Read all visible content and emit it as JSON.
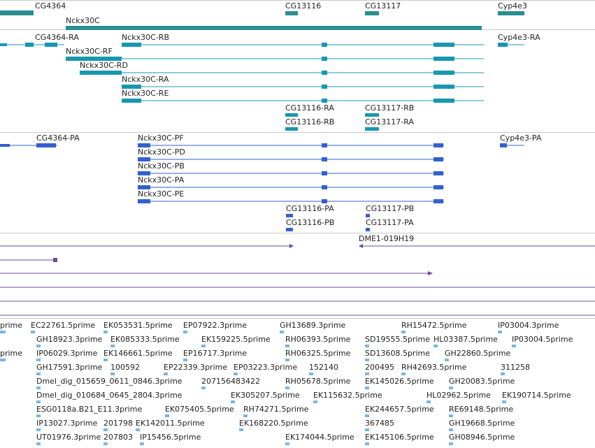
{
  "colors": {
    "gene": "#2a8f8f",
    "transcript": "#1797b0",
    "protein": "#3261cc",
    "clone": "#6a4b9a",
    "est": "#7ab6dc",
    "separator": "#c8c8c8"
  },
  "tracks": {
    "genes": [
      {
        "label": "CG4364"
      },
      {
        "label": "Nckx30C"
      },
      {
        "label": "CG13116"
      },
      {
        "label": "CG13117"
      },
      {
        "label": "Cyp4e3"
      }
    ],
    "transcripts": [
      {
        "label": "CG4364-RA"
      },
      {
        "label": "Nckx30C-RB"
      },
      {
        "label": "Cyp4e3-RA"
      },
      {
        "label": "Nckx30C-RF"
      },
      {
        "label": "Nckx30C-RD"
      },
      {
        "label": "Nckx30C-RA"
      },
      {
        "label": "Nckx30C-RE"
      },
      {
        "label": "CG13116-RA"
      },
      {
        "label": "CG13117-RB"
      },
      {
        "label": "CG13116-RB"
      },
      {
        "label": "CG13117-RA"
      }
    ],
    "proteins": [
      {
        "label": "CG4364-PA"
      },
      {
        "label": "Nckx30C-PF"
      },
      {
        "label": "Cyp4e3-PA"
      },
      {
        "label": "Nckx30C-PD"
      },
      {
        "label": "Nckx30C-PB"
      },
      {
        "label": "Nckx30C-PA"
      },
      {
        "label": "Nckx30C-PE"
      },
      {
        "label": "CG13116-PA"
      },
      {
        "label": "CG13117-PB"
      },
      {
        "label": "CG13116-PB"
      },
      {
        "label": "CG13117-PA"
      }
    ],
    "clones": [
      {
        "label": "DME1-019H19"
      }
    ],
    "ests": [
      {
        "label": "prime"
      },
      {
        "label": "EC22761.5prime"
      },
      {
        "label": "EK053531.5prime"
      },
      {
        "label": "EP07922.3prime"
      },
      {
        "label": "GH13689.3prime"
      },
      {
        "label": "RH15472.5prime"
      },
      {
        "label": "IP03004.3prime"
      },
      {
        "label": "GH18923.3prime"
      },
      {
        "label": "EK085333.5prime"
      },
      {
        "label": "EK159225.5prime"
      },
      {
        "label": "RH06393.5prime"
      },
      {
        "label": "SD19555.5prime"
      },
      {
        "label": "HL03387.5prime"
      },
      {
        "label": "IP03004.5prime"
      },
      {
        "label": "prime"
      },
      {
        "label": "IP06029.3prime"
      },
      {
        "label": "EK146661.5prime"
      },
      {
        "label": "EP16717.3prime"
      },
      {
        "label": "RH06325.5prime"
      },
      {
        "label": "SD13608.5prime"
      },
      {
        "label": "GH22860.5prime"
      },
      {
        "label": "GH17591.3prime"
      },
      {
        "label": "100592"
      },
      {
        "label": "EP22339.3prime"
      },
      {
        "label": "EP03223.3prime"
      },
      {
        "label": "152140"
      },
      {
        "label": "200495"
      },
      {
        "label": "RH42693.5prime"
      },
      {
        "label": "311258"
      },
      {
        "label": "Dmel_dig_015659_0611_0846.3prime"
      },
      {
        "label": "207156483422"
      },
      {
        "label": "RH05678.5prime"
      },
      {
        "label": "EK145026.5prime"
      },
      {
        "label": "GH20083.5prime"
      },
      {
        "label": "Dmel_dig_010684_0645_2804.3prime"
      },
      {
        "label": "EK305207.5prime"
      },
      {
        "label": "EK115632.5prime"
      },
      {
        "label": "HL02962.5prime"
      },
      {
        "label": "EK190714.5prime"
      },
      {
        "label": "ESG0118a.B21_E11.3prime"
      },
      {
        "label": "EK075405.5prime"
      },
      {
        "label": "RH74271.5prime"
      },
      {
        "label": "EK244657.5prime"
      },
      {
        "label": "RE69148.5prime"
      },
      {
        "label": "IP13027.3prime"
      },
      {
        "label": "201798"
      },
      {
        "label": "EK142011.5prime"
      },
      {
        "label": "EK168220.5prime"
      },
      {
        "label": "367485"
      },
      {
        "label": "GH19668.5prime"
      },
      {
        "label": "UT01976.3prime"
      },
      {
        "label": "207803"
      },
      {
        "label": "IP15456.5prime"
      },
      {
        "label": "EK174044.5prime"
      },
      {
        "label": "EK145106.5prime"
      },
      {
        "label": "GH08946.5prime"
      }
    ]
  }
}
